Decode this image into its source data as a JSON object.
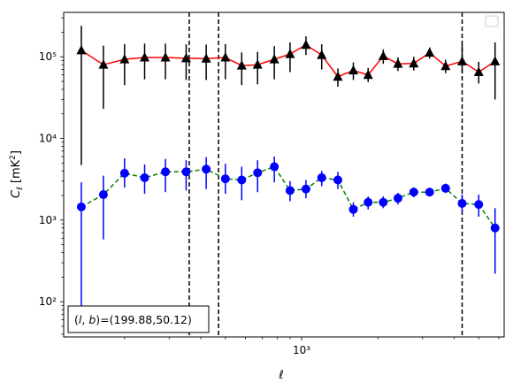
{
  "chart_data": {
    "type": "scatter",
    "xscale": "log",
    "yscale": "log",
    "xlim": [
      115,
      6300
    ],
    "ylim": [
      37,
      350000
    ],
    "xlabel": "ℓ",
    "ylabel": "C_ℓ [mK²]",
    "x_tick_labels": [
      "10³"
    ],
    "y_tick_labels": [
      "10²",
      "10³",
      "10⁴",
      "10⁵"
    ],
    "annotation": "(l, b)=(199.88,50.12)",
    "legend": {
      "placement": "top-right",
      "entries": []
    },
    "grid": false,
    "vlines": [
      360,
      470,
      4300
    ],
    "series": [
      {
        "color": "#ff0000",
        "marker": "triangle",
        "marker_color": "#000000",
        "line": "solid",
        "x": [
          135,
          165,
          200,
          240,
          290,
          350,
          420,
          500,
          580,
          670,
          780,
          900,
          1040,
          1200,
          1390,
          1600,
          1830,
          2100,
          2400,
          2770,
          3200,
          3700,
          4300,
          5000,
          5800
        ],
        "y": [
          120000,
          80000,
          93000,
          98000,
          98000,
          96000,
          95000,
          98000,
          78000,
          80000,
          93000,
          108000,
          140000,
          105000,
          57000,
          68000,
          60000,
          102000,
          82000,
          83000,
          112000,
          77000,
          88000,
          65000,
          88000
        ],
        "err_low": [
          4700,
          23000,
          45000,
          53000,
          53000,
          52000,
          52000,
          53000,
          45000,
          46000,
          53000,
          65000,
          105000,
          70000,
          43000,
          52000,
          49000,
          82000,
          67000,
          68000,
          95000,
          63000,
          63000,
          47000,
          30000
        ],
        "err_high": [
          240000,
          137000,
          143000,
          145000,
          145000,
          142000,
          141000,
          143000,
          113000,
          115000,
          135000,
          150000,
          178000,
          142000,
          72000,
          85000,
          73000,
          123000,
          98000,
          100000,
          130000,
          92000,
          140000,
          87000,
          150000
        ]
      },
      {
        "color": "#008000",
        "marker": "circle",
        "marker_color": "#0000ff",
        "line": "dashed",
        "x": [
          135,
          165,
          200,
          240,
          290,
          350,
          420,
          500,
          580,
          670,
          780,
          900,
          1040,
          1200,
          1390,
          1600,
          1830,
          2100,
          2400,
          2770,
          3200,
          3700,
          4300,
          5000,
          5800
        ],
        "y": [
          1450,
          2050,
          3750,
          3300,
          3900,
          3900,
          4200,
          3200,
          3100,
          3800,
          4500,
          2300,
          2400,
          3300,
          3100,
          1350,
          1650,
          1650,
          1850,
          2200,
          2200,
          2450,
          1600,
          1550,
          800
        ],
        "err_low": [
          45,
          580,
          2500,
          2100,
          2200,
          2300,
          2400,
          2100,
          1750,
          2200,
          2900,
          1700,
          1850,
          2600,
          2400,
          1100,
          1350,
          1400,
          1550,
          1900,
          1950,
          2150,
          1250,
          1100,
          220
        ],
        "err_high": [
          2900,
          3500,
          5700,
          4800,
          5600,
          5400,
          5900,
          4900,
          4500,
          5400,
          6000,
          3000,
          3100,
          4000,
          3900,
          1650,
          1950,
          1950,
          2150,
          2500,
          2450,
          2800,
          2050,
          2050,
          1400
        ]
      }
    ]
  }
}
